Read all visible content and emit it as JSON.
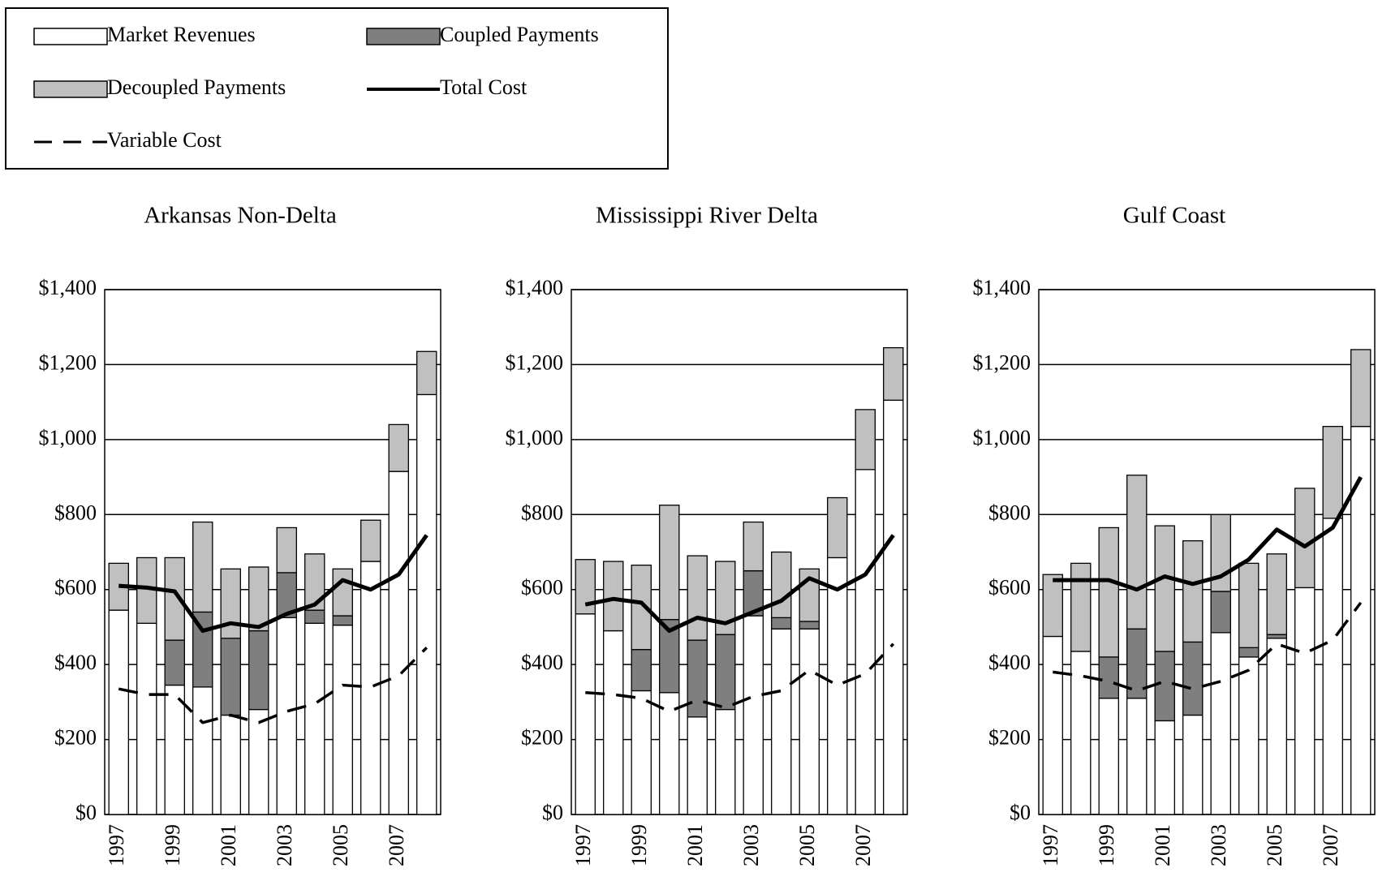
{
  "chart_data": [
    {
      "type": "bar",
      "stacked": true,
      "title": "Arkansas Non-Delta",
      "categories": [
        "1997",
        null,
        "1999",
        null,
        "2001",
        null,
        "2003",
        null,
        "2005",
        null,
        "2007",
        null
      ],
      "series": [
        {
          "name": "Market Revenues",
          "color": "#ffffff",
          "values": [
            545,
            510,
            345,
            340,
            265,
            280,
            525,
            510,
            505,
            675,
            915,
            1120
          ]
        },
        {
          "name": "Coupled Payments",
          "color": "#7f7f7f",
          "values": [
            0,
            0,
            120,
            200,
            205,
            210,
            120,
            35,
            25,
            0,
            0,
            0
          ]
        },
        {
          "name": "Decoupled Payments",
          "color": "#c0c0c0",
          "values": [
            125,
            175,
            220,
            240,
            185,
            170,
            120,
            150,
            125,
            110,
            125,
            115
          ]
        },
        {
          "name": "Total Cost",
          "color": "#000000",
          "kind": "line",
          "values": [
            610,
            605,
            595,
            490,
            510,
            500,
            535,
            560,
            625,
            600,
            640,
            745
          ]
        },
        {
          "name": "Variable  Cost",
          "color": "#000000",
          "kind": "line",
          "dashed": true,
          "values": [
            335,
            320,
            320,
            245,
            265,
            245,
            275,
            295,
            345,
            340,
            370,
            445
          ]
        }
      ],
      "ylim": [
        0,
        1400
      ],
      "yticks": [
        {
          "value": 0,
          "label": "$0"
        },
        {
          "value": 200,
          "label": "$200"
        },
        {
          "value": 400,
          "label": "$400"
        },
        {
          "value": 600,
          "label": "$600"
        },
        {
          "value": 800,
          "label": "$800"
        },
        {
          "value": 1000,
          "label": "$1,000"
        },
        {
          "value": 1200,
          "label": "$1,200"
        },
        {
          "value": 1400,
          "label": "$1,400"
        }
      ],
      "grid": true
    },
    {
      "type": "bar",
      "stacked": true,
      "title": "Mississippi River Delta",
      "categories": [
        "1997",
        null,
        "1999",
        null,
        "2001",
        null,
        "2003",
        null,
        "2005",
        null,
        "2007",
        null
      ],
      "series": [
        {
          "color": "#ffffff",
          "values": [
            535,
            490,
            330,
            325,
            260,
            280,
            530,
            495,
            495,
            685,
            920,
            1105
          ]
        },
        {
          "color": "#7f7f7f",
          "values": [
            0,
            0,
            110,
            195,
            205,
            200,
            120,
            30,
            20,
            0,
            0,
            0
          ]
        },
        {
          "color": "#c0c0c0",
          "values": [
            145,
            185,
            225,
            305,
            225,
            195,
            130,
            175,
            140,
            160,
            160,
            140
          ]
        },
        {
          "color": "#000000",
          "kind": "line",
          "values": [
            560,
            575,
            565,
            490,
            525,
            510,
            540,
            570,
            630,
            600,
            640,
            745
          ]
        },
        {
          "color": "#000000",
          "kind": "line",
          "dashed": true,
          "values": [
            325,
            320,
            310,
            275,
            305,
            285,
            315,
            330,
            385,
            345,
            375,
            455
          ]
        }
      ],
      "ylim": [
        0,
        1400
      ],
      "yticks": [
        {
          "value": 0,
          "label": "$0"
        },
        {
          "value": 200,
          "label": "$200"
        },
        {
          "value": 400,
          "label": "$400"
        },
        {
          "value": 600,
          "label": "$600"
        },
        {
          "value": 800,
          "label": "$800"
        },
        {
          "value": 1000,
          "label": "$1,000"
        },
        {
          "value": 1200,
          "label": "$1,200"
        },
        {
          "value": 1400,
          "label": "$1,400"
        }
      ],
      "grid": true
    },
    {
      "type": "bar",
      "stacked": true,
      "title": "Gulf Coast",
      "categories": [
        "1997",
        null,
        "1999",
        null,
        "2001",
        null,
        "2003",
        null,
        "2005",
        null,
        "2007",
        null
      ],
      "series": [
        {
          "color": "#ffffff",
          "values": [
            475,
            435,
            310,
            310,
            250,
            265,
            485,
            420,
            470,
            605,
            790,
            1035
          ]
        },
        {
          "color": "#7f7f7f",
          "values": [
            0,
            0,
            110,
            185,
            185,
            195,
            110,
            25,
            10,
            0,
            0,
            0
          ]
        },
        {
          "color": "#c0c0c0",
          "values": [
            165,
            235,
            345,
            410,
            335,
            270,
            205,
            225,
            215,
            265,
            245,
            205
          ]
        },
        {
          "color": "#000000",
          "kind": "line",
          "values": [
            625,
            625,
            625,
            600,
            635,
            615,
            635,
            680,
            760,
            715,
            765,
            900
          ]
        },
        {
          "color": "#000000",
          "kind": "line",
          "dashed": true,
          "values": [
            380,
            370,
            355,
            330,
            355,
            335,
            355,
            385,
            455,
            430,
            465,
            565
          ]
        }
      ],
      "ylim": [
        0,
        1400
      ],
      "yticks": [
        {
          "value": 0,
          "label": "$0"
        },
        {
          "value": 200,
          "label": "$200"
        },
        {
          "value": 400,
          "label": "$400"
        },
        {
          "value": 600,
          "label": "$600"
        },
        {
          "value": 800,
          "label": "$800"
        },
        {
          "value": 1000,
          "label": "$1,000"
        },
        {
          "value": 1200,
          "label": "$1,200"
        },
        {
          "value": 1400,
          "label": "$1,400"
        }
      ],
      "grid": true
    }
  ]
}
